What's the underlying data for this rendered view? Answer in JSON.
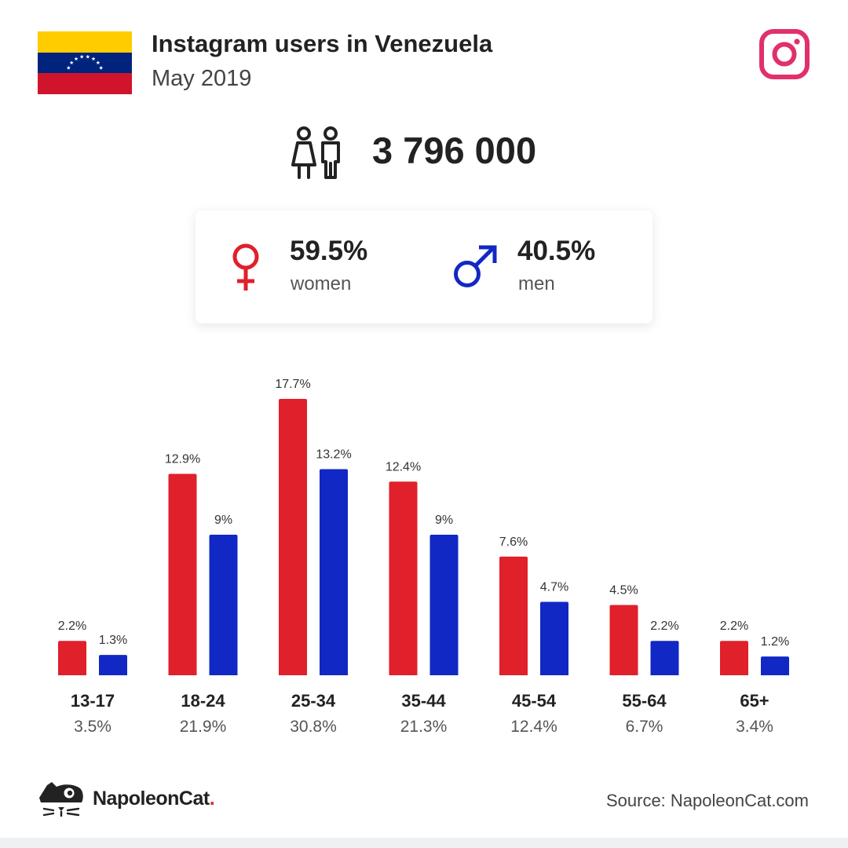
{
  "header": {
    "title": "Instagram users in Venezuela",
    "subtitle": "May 2019"
  },
  "total_users": "3 796 000",
  "gender": {
    "women": {
      "pct": "59.5%",
      "label": "women"
    },
    "men": {
      "pct": "40.5%",
      "label": "men"
    }
  },
  "colors": {
    "women": "#e0202a",
    "men": "#1128c4",
    "instagram": "#e1306c",
    "flag_yellow": "#ffcc00",
    "flag_blue": "#00247d",
    "flag_red": "#cf142b"
  },
  "icons": {
    "flag": "venezuela-flag-icon",
    "brand": "instagram-icon",
    "users": "people-icon",
    "female": "female-symbol-icon",
    "male": "male-symbol-icon",
    "logo": "napoleoncat-logo-icon"
  },
  "chart_data": {
    "type": "bar",
    "categories": [
      "13-17",
      "18-24",
      "25-34",
      "35-44",
      "45-54",
      "55-64",
      "65+"
    ],
    "category_totals": [
      "3.5%",
      "21.9%",
      "30.8%",
      "21.3%",
      "12.4%",
      "6.7%",
      "3.4%"
    ],
    "series": [
      {
        "name": "women",
        "values": [
          2.2,
          12.9,
          17.7,
          12.4,
          7.6,
          4.5,
          2.2
        ],
        "labels": [
          "2.2%",
          "12.9%",
          "17.7%",
          "12.4%",
          "7.6%",
          "4.5%",
          "2.2%"
        ]
      },
      {
        "name": "men",
        "values": [
          1.3,
          9,
          13.2,
          9,
          4.7,
          2.2,
          1.2
        ],
        "labels": [
          "1.3%",
          "9%",
          "13.2%",
          "9%",
          "4.7%",
          "2.2%",
          "1.2%"
        ]
      }
    ],
    "ylim": [
      0,
      17.7
    ],
    "grid": false
  },
  "footer": {
    "brand": "NapoleonCat",
    "brand_dot": ".",
    "source": "Source: NapoleonCat.com"
  }
}
